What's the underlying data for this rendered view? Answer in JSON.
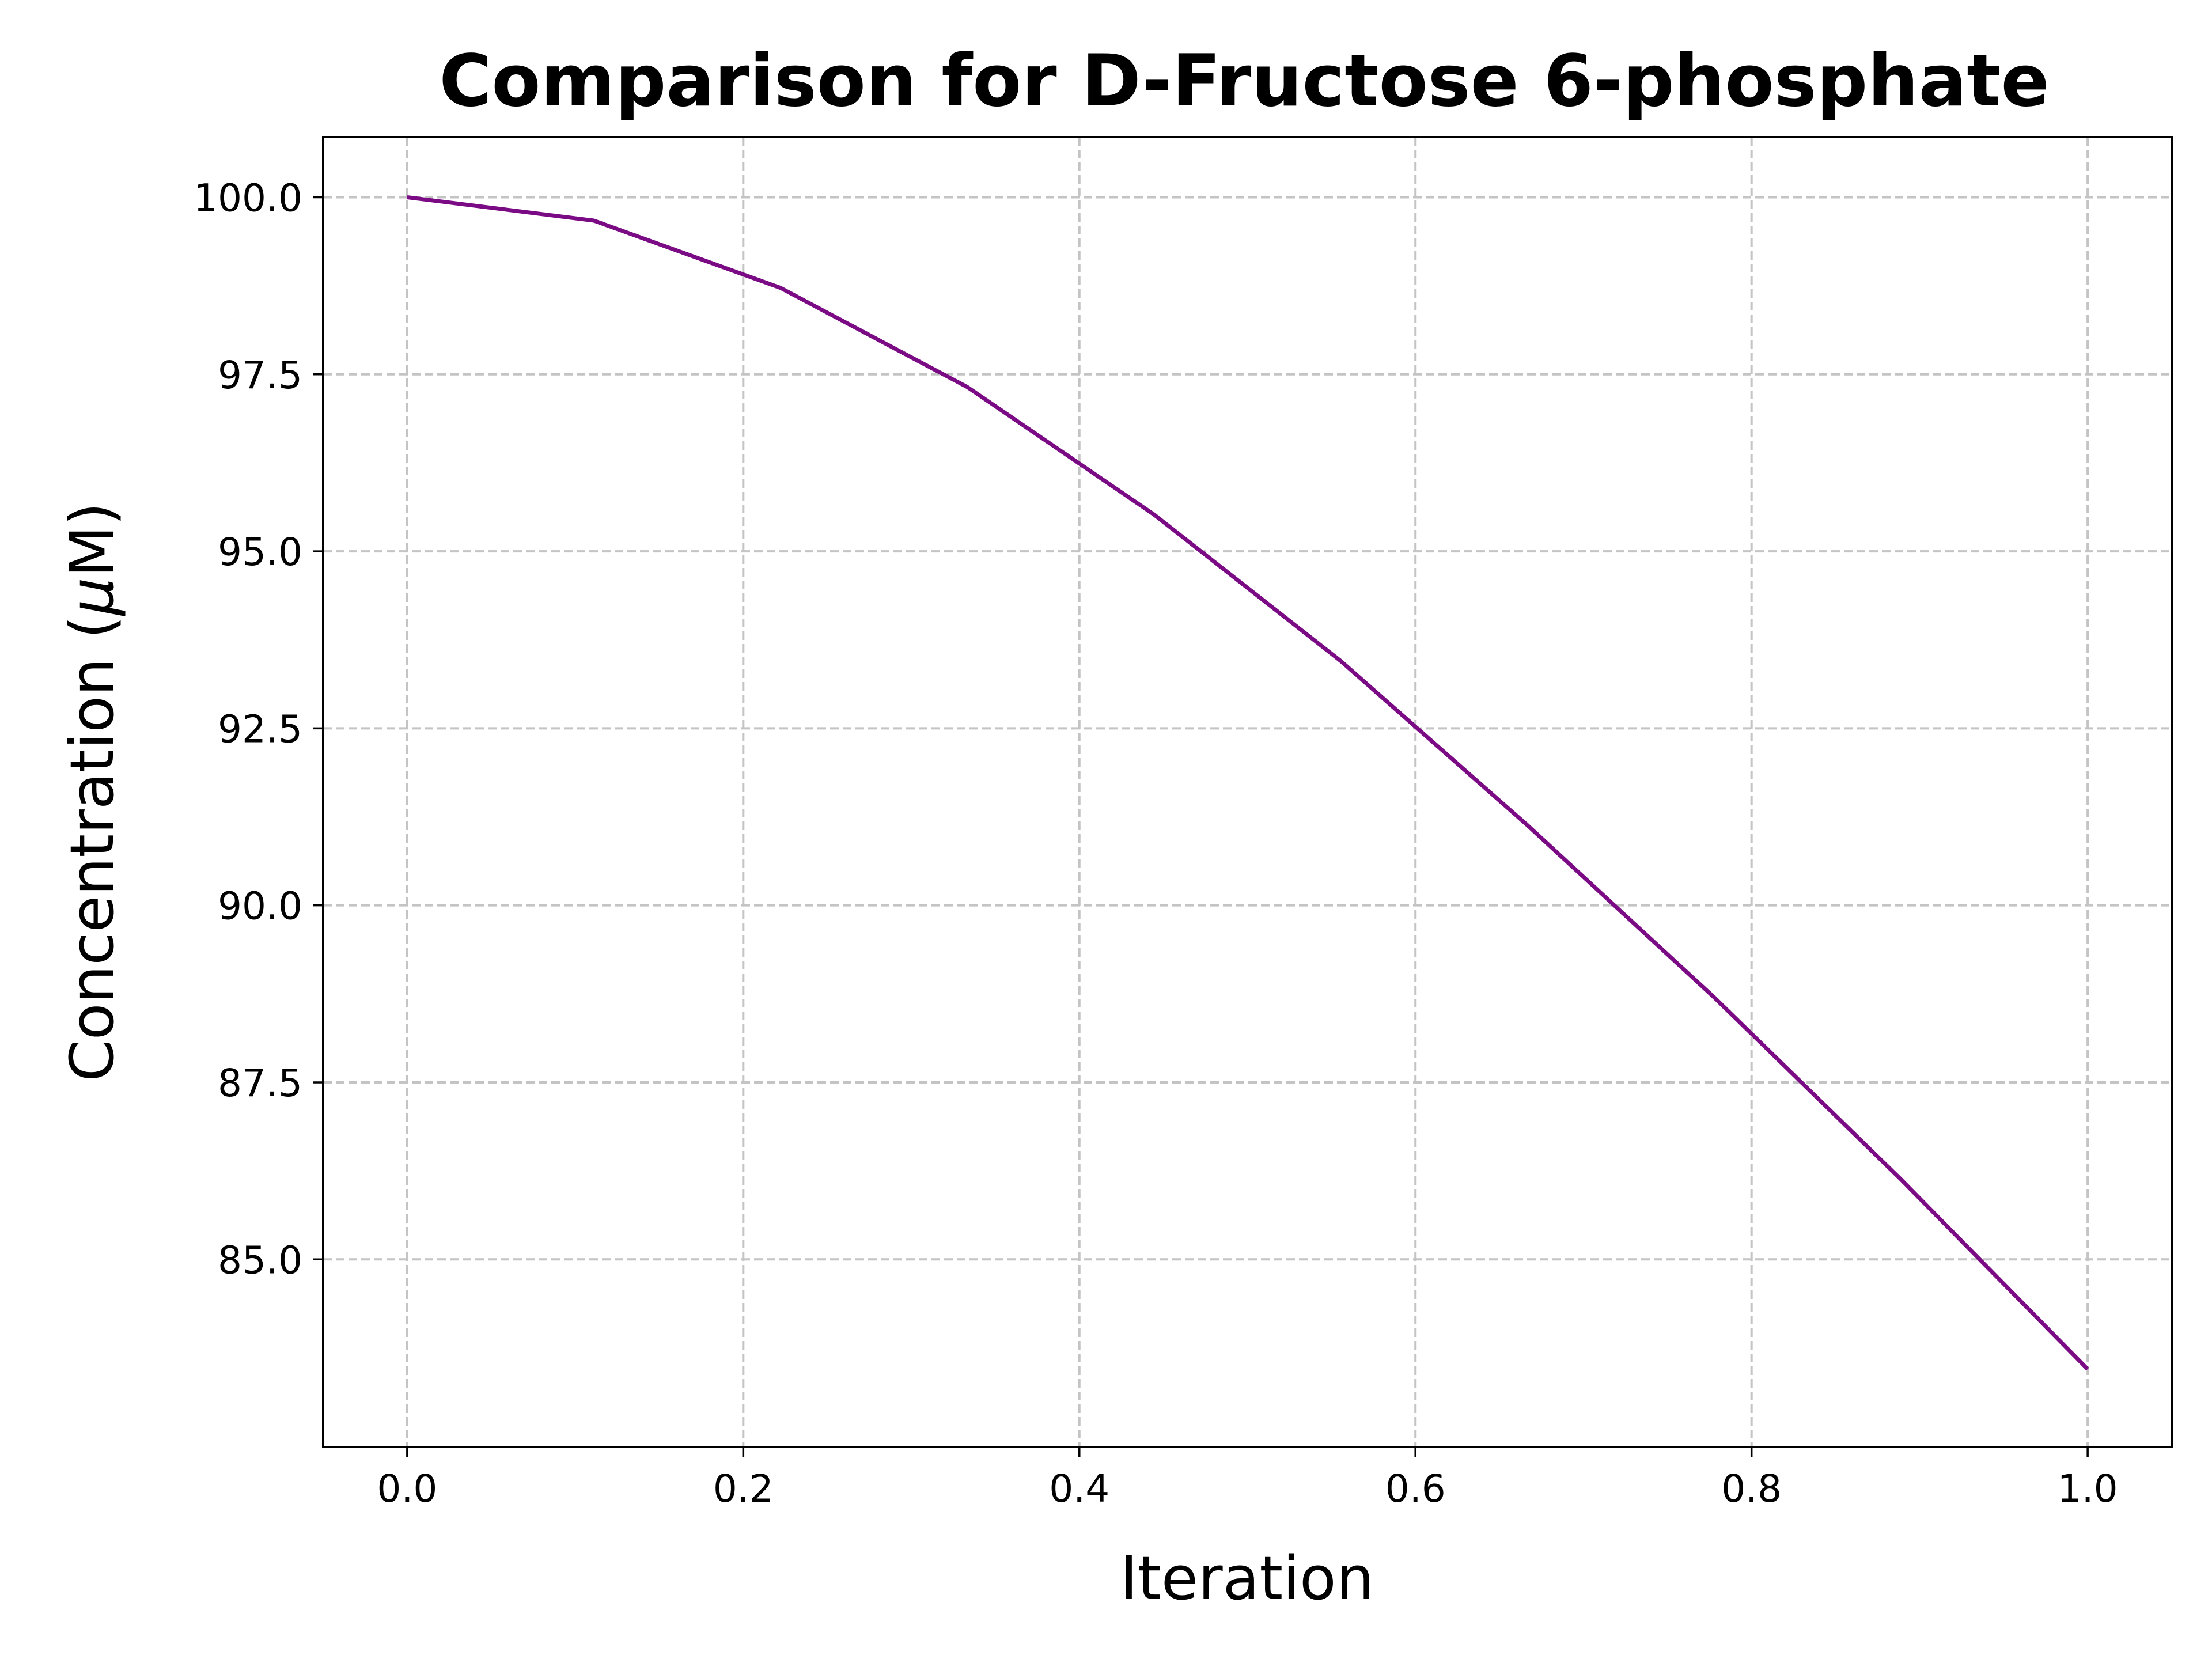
{
  "chart_data": {
    "type": "line",
    "title": "Comparison for D-Fructose 6-phosphate",
    "xlabel": "Iteration",
    "ylabel_prefix": "Concentration (",
    "ylabel_symbol": "μ",
    "ylabel_suffix": "M)",
    "xlim": [
      -0.05,
      1.05
    ],
    "ylim": [
      82.35,
      100.85
    ],
    "x_ticks": [
      0.0,
      0.2,
      0.4,
      0.6,
      0.8,
      1.0
    ],
    "x_tick_labels": [
      "0.0",
      "0.2",
      "0.4",
      "0.6",
      "0.8",
      "1.0"
    ],
    "y_ticks": [
      85.0,
      87.5,
      90.0,
      92.5,
      95.0,
      97.5,
      100.0
    ],
    "y_tick_labels": [
      "85.0",
      "87.5",
      "90.0",
      "92.5",
      "95.0",
      "97.5",
      "100.0"
    ],
    "grid": true,
    "series": [
      {
        "color": "#7b0a85",
        "x": [
          0.0,
          0.1111,
          0.2222,
          0.3333,
          0.4444,
          0.5556,
          0.6667,
          0.7778,
          0.8889,
          1.0
        ],
        "y": [
          100.0,
          99.67,
          98.72,
          97.32,
          95.52,
          93.45,
          91.13,
          88.7,
          86.13,
          83.45
        ]
      }
    ]
  }
}
